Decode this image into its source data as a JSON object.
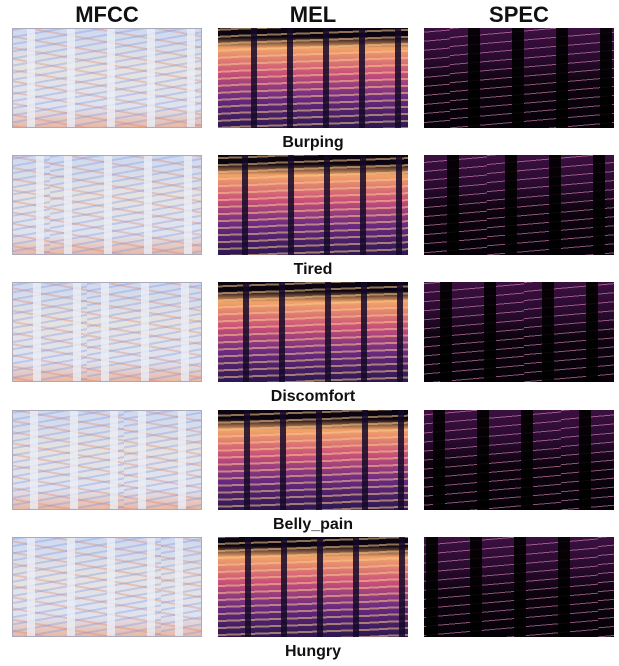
{
  "columns": [
    "MFCC",
    "MEL",
    "SPEC"
  ],
  "rows": [
    {
      "label": "Burping"
    },
    {
      "label": "Tired"
    },
    {
      "label": "Discomfort"
    },
    {
      "label": "Belly_pain"
    },
    {
      "label": "Hungry"
    }
  ]
}
